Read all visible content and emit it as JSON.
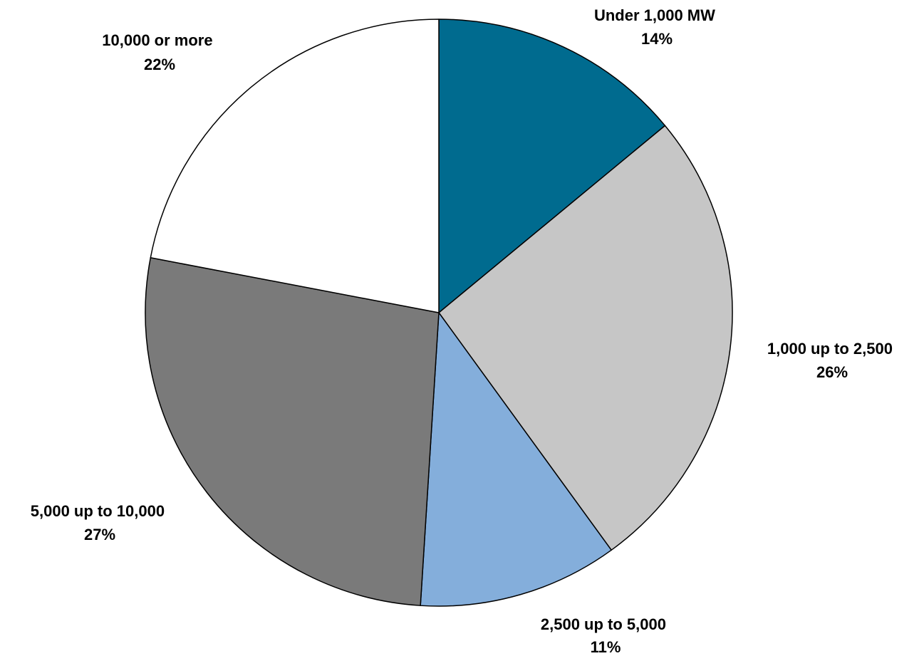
{
  "chart_data": {
    "type": "pie",
    "title": "",
    "start_angle_deg": 0,
    "direction": "clockwise",
    "slices": [
      {
        "label": "Under 1,000 MW",
        "percent_label": "14%",
        "value": 14,
        "color": "#006B8F"
      },
      {
        "label": "1,000 up to 2,500",
        "percent_label": "26%",
        "value": 26,
        "color": "#C6C6C6"
      },
      {
        "label": "2,500 up to 5,000",
        "percent_label": "11%",
        "value": 11,
        "color": "#84AEDB"
      },
      {
        "label": "5,000 up to 10,000",
        "percent_label": "27%",
        "value": 27,
        "color": "#7A7A7A"
      },
      {
        "label": "10,000 or more",
        "percent_label": "22%",
        "value": 22,
        "color": "#FFFFFF"
      }
    ]
  }
}
